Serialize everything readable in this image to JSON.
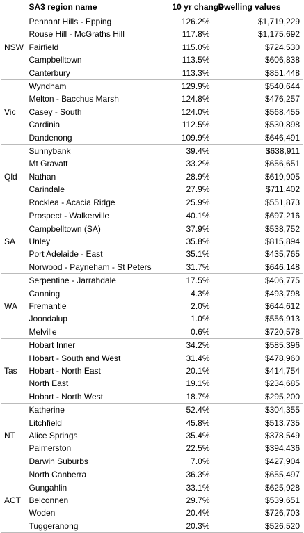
{
  "header": [
    "SA3 region name",
    "10 yr change",
    "Dwelling values"
  ],
  "groups": [
    {
      "state": "NSW",
      "rows": [
        [
          "Pennant Hills - Epping",
          "126.2%",
          "$1,719,229"
        ],
        [
          "Rouse Hill - McGraths Hill",
          "117.8%",
          "$1,175,692"
        ],
        [
          "Fairfield",
          "115.0%",
          "$724,530"
        ],
        [
          "Campbelltown",
          "113.5%",
          "$606,838"
        ],
        [
          "Canterbury",
          "113.3%",
          "$851,448"
        ]
      ]
    },
    {
      "state": "Vic",
      "rows": [
        [
          "Wyndham",
          "129.9%",
          "$540,644"
        ],
        [
          "Melton - Bacchus Marsh",
          "124.8%",
          "$476,257"
        ],
        [
          "Casey - South",
          "124.0%",
          "$568,455"
        ],
        [
          "Cardinia",
          "112.5%",
          "$530,898"
        ],
        [
          "Dandenong",
          "109.9%",
          "$646,491"
        ]
      ]
    },
    {
      "state": "Qld",
      "rows": [
        [
          "Sunnybank",
          "39.4%",
          "$638,911"
        ],
        [
          "Mt Gravatt",
          "33.2%",
          "$656,651"
        ],
        [
          "Nathan",
          "28.9%",
          "$619,905"
        ],
        [
          "Carindale",
          "27.9%",
          "$711,402"
        ],
        [
          "Rocklea - Acacia Ridge",
          "25.9%",
          "$551,873"
        ]
      ]
    },
    {
      "state": "SA",
      "rows": [
        [
          "Prospect - Walkerville",
          "40.1%",
          "$697,216"
        ],
        [
          "Campbelltown (SA)",
          "37.9%",
          "$538,752"
        ],
        [
          "Unley",
          "35.8%",
          "$815,894"
        ],
        [
          "Port Adelaide - East",
          "35.1%",
          "$435,765"
        ],
        [
          "Norwood - Payneham - St Peters",
          "31.7%",
          "$646,148"
        ]
      ]
    },
    {
      "state": "WA",
      "rows": [
        [
          "Serpentine - Jarrahdale",
          "17.5%",
          "$406,775"
        ],
        [
          "Canning",
          "4.3%",
          "$493,798"
        ],
        [
          "Fremantle",
          "2.0%",
          "$644,612"
        ],
        [
          "Joondalup",
          "1.0%",
          "$556,913"
        ],
        [
          "Melville",
          "0.6%",
          "$720,578"
        ]
      ]
    },
    {
      "state": "Tas",
      "rows": [
        [
          "Hobart Inner",
          "34.2%",
          "$585,396"
        ],
        [
          "Hobart - South and West",
          "31.4%",
          "$478,960"
        ],
        [
          "Hobart - North East",
          "20.1%",
          "$414,754"
        ],
        [
          "North East",
          "19.1%",
          "$234,685"
        ],
        [
          "Hobart - North West",
          "18.7%",
          "$295,200"
        ]
      ]
    },
    {
      "state": "NT",
      "rows": [
        [
          "Katherine",
          "52.4%",
          "$304,355"
        ],
        [
          "Litchfield",
          "45.8%",
          "$513,735"
        ],
        [
          "Alice Springs",
          "35.4%",
          "$378,549"
        ],
        [
          "Palmerston",
          "22.5%",
          "$394,436"
        ],
        [
          "Darwin Suburbs",
          "7.0%",
          "$427,904"
        ]
      ]
    },
    {
      "state": "ACT",
      "rows": [
        [
          "North Canberra",
          "36.3%",
          "$655,497"
        ],
        [
          "Gungahlin",
          "33.1%",
          "$625,928"
        ],
        [
          "Belconnen",
          "29.7%",
          "$539,651"
        ],
        [
          "Woden",
          "20.4%",
          "$726,703"
        ],
        [
          "Tuggeranong",
          "20.3%",
          "$526,520"
        ]
      ]
    }
  ]
}
